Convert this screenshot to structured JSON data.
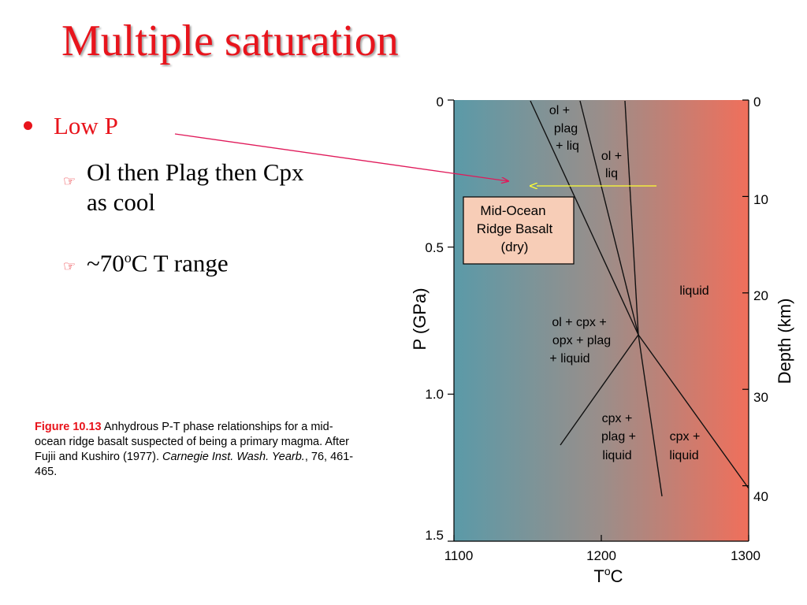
{
  "slide": {
    "title": "Multiple saturation",
    "bullets": {
      "main": "Low P",
      "sub1": "Ol then Plag then Cpx as cool",
      "sub2_prefix": "~70",
      "sub2_sup": "o",
      "sub2_suffix": "C T range"
    },
    "caption": {
      "figure_label": "Figure 10.13",
      "text": " Anhydrous P-T phase relationships for a mid-ocean ridge basalt suspected of being a primary magma. After Fujii and Kushiro (1977). ",
      "journal": "Carnegie Inst. Wash. Yearb.",
      "ref": ", 76, 461-465."
    }
  },
  "diagram": {
    "x_axis": {
      "label_main": "T",
      "label_sup": "o",
      "label_unit": "C",
      "ticks": [
        "1100",
        "1200",
        "1300"
      ],
      "tick_values": [
        1100,
        1200,
        1300
      ],
      "range": [
        1100,
        1300
      ]
    },
    "y_axis_left": {
      "label": "P (GPa)",
      "ticks": [
        "0",
        "0.5",
        "1.0",
        "1.5"
      ],
      "tick_values": [
        0,
        0.5,
        1.0,
        1.5
      ],
      "range": [
        0,
        1.5
      ]
    },
    "y_axis_right": {
      "label": "Depth (km)",
      "ticks": [
        "0",
        "10",
        "20",
        "30",
        "40"
      ],
      "tick_values": [
        0,
        10,
        20,
        30,
        40
      ]
    },
    "box_label": [
      "Mid-Ocean",
      "Ridge Basalt",
      "(dry)"
    ],
    "fields": {
      "ol_plag_liq": [
        "ol +",
        "plag",
        "+ liq"
      ],
      "ol_liq": [
        "ol +",
        "liq"
      ],
      "liquid": "liquid",
      "ol_cpx_opx_plag_liquid": [
        "ol + cpx +",
        "opx + plag",
        "+ liquid"
      ],
      "cpx_plag_liquid": [
        "cpx +",
        "plag +",
        "liquid"
      ],
      "cpx_liquid": [
        "cpx +",
        "liquid"
      ]
    },
    "colors": {
      "gradient_left": "#5b9aa8",
      "gradient_mid": "#9a8e8a",
      "gradient_right": "#f06f5b",
      "box_fill": "#f7cdb7",
      "pink_arrow": "#e01a5a",
      "yellow_arrow": "#ffff33"
    }
  }
}
